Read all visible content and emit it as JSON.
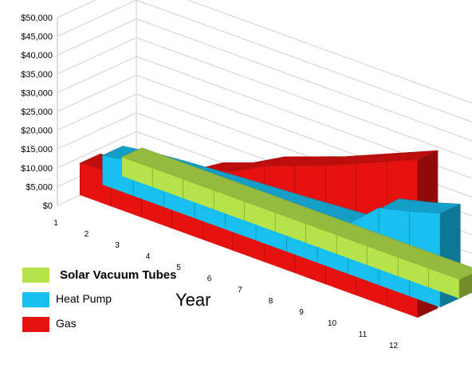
{
  "chart_data": {
    "type": "area",
    "title": "",
    "xlabel": "Year",
    "ylabel": "",
    "x": [
      1,
      2,
      3,
      4,
      5,
      6,
      7,
      8,
      9,
      10,
      11,
      12
    ],
    "y_ticks": [
      "$0",
      "$5,000",
      "$10,000",
      "$15,000",
      "$20,000",
      "$25,000",
      "$30,000",
      "$35,000",
      "$40,000",
      "$45,000",
      "$50,000"
    ],
    "ylim": [
      0,
      50000
    ],
    "grid": true,
    "legend_position": "bottom-left",
    "series": [
      {
        "name": "Solar Vacuum Tubes",
        "color": "#b6e34a",
        "values": [
          5000,
          5000,
          5000,
          5000,
          5000,
          5000,
          5000,
          5000,
          5000,
          5000,
          5000,
          5000
        ]
      },
      {
        "name": "Heat Pump",
        "color": "#18c0f0",
        "values": [
          7800,
          9000,
          9800,
          10400,
          11000,
          11500,
          12000,
          12600,
          13200,
          20500,
          22500,
          25000
        ]
      },
      {
        "name": "Gas",
        "color": "#e51210",
        "values": [
          8500,
          9000,
          10500,
          13000,
          18000,
          21000,
          25500,
          28500,
          31500,
          35000,
          38500,
          42000
        ]
      }
    ]
  }
}
